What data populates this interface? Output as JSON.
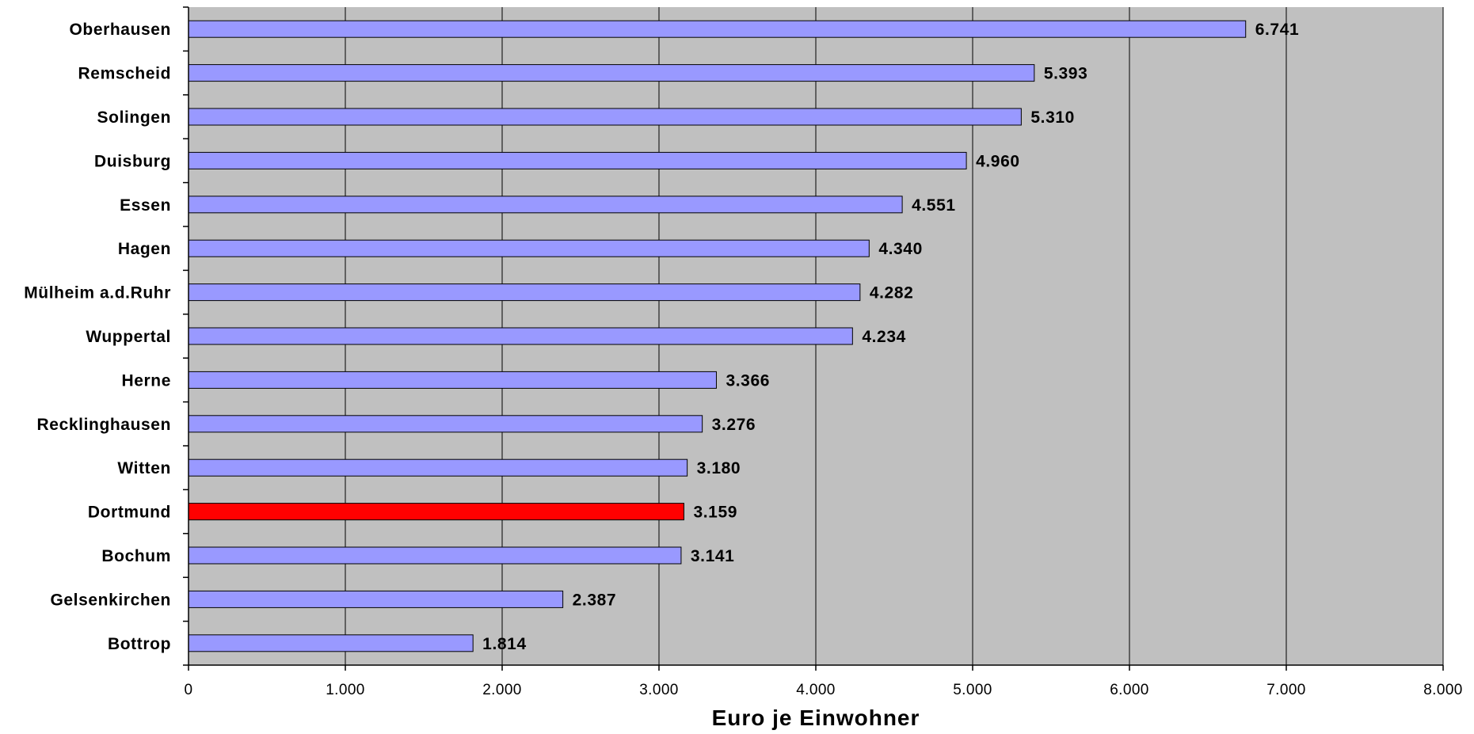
{
  "chart_data": {
    "type": "bar",
    "orientation": "horizontal",
    "categories": [
      "Oberhausen",
      "Remscheid",
      "Solingen",
      "Duisburg",
      "Essen",
      "Hagen",
      "Mülheim a.d.Ruhr",
      "Wuppertal",
      "Herne",
      "Recklinghausen",
      "Witten",
      "Dortmund",
      "Bochum",
      "Gelsenkirchen",
      "Bottrop"
    ],
    "values": [
      6741,
      5393,
      5310,
      4960,
      4551,
      4340,
      4282,
      4234,
      3366,
      3276,
      3180,
      3159,
      3141,
      2387,
      1814
    ],
    "value_labels": [
      "6.741",
      "5.393",
      "5.310",
      "4.960",
      "4.551",
      "4.340",
      "4.282",
      "4.234",
      "3.366",
      "3.276",
      "3.180",
      "3.159",
      "3.141",
      "2.387",
      "1.814"
    ],
    "highlight_category": "Dortmund",
    "xlabel": "Euro je Einwohner",
    "ylabel": "",
    "title": "",
    "xlim": [
      0,
      8000
    ],
    "xticks": [
      0,
      1000,
      2000,
      3000,
      4000,
      5000,
      6000,
      7000,
      8000
    ],
    "xtick_labels": [
      "0",
      "1.000",
      "2.000",
      "3.000",
      "4.000",
      "5.000",
      "6.000",
      "7.000",
      "8.000"
    ],
    "grid": "vertical",
    "legend": "none",
    "colors": {
      "bar": "#9999ff",
      "highlight_bar": "#ff0000",
      "plot_background": "#c0c0c0",
      "gridline": "#000000",
      "bar_outline": "#000000"
    }
  }
}
